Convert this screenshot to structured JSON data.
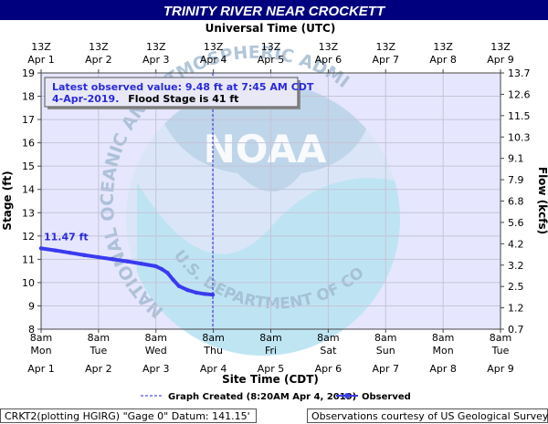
{
  "chart_data": {
    "type": "line",
    "title": "TRINITY RIVER NEAR CROCKETT",
    "top_axis_title": "Universal Time (UTC)",
    "xlabel": "Site Time (CDT)",
    "ylabel": "Stage (ft)",
    "y2label": "Flow (kcfs)",
    "ylim": [
      8,
      19
    ],
    "y_ticks": [
      8,
      9,
      10,
      11,
      12,
      13,
      14,
      15,
      16,
      17,
      18,
      19
    ],
    "y2_ticks": [
      "0.7",
      "1.2",
      "2.5",
      "3.2",
      "4.2",
      "5.6",
      "6.8",
      "7.9",
      "9.1",
      "10.3",
      "11.5",
      "12.6",
      "13.7"
    ],
    "x_ticks_top": [
      [
        "13Z",
        "Apr 1"
      ],
      [
        "13Z",
        "Apr 2"
      ],
      [
        "13Z",
        "Apr 3"
      ],
      [
        "13Z",
        "Apr 4"
      ],
      [
        "13Z",
        "Apr 5"
      ],
      [
        "13Z",
        "Apr 6"
      ],
      [
        "13Z",
        "Apr 7"
      ],
      [
        "13Z",
        "Apr 8"
      ],
      [
        "13Z",
        "Apr 9"
      ]
    ],
    "x_ticks_bottom": [
      [
        "8am",
        "Mon",
        "Apr 1"
      ],
      [
        "8am",
        "Tue",
        "Apr 2"
      ],
      [
        "8am",
        "Wed",
        "Apr 3"
      ],
      [
        "8am",
        "Thu",
        "Apr 4"
      ],
      [
        "8am",
        "Fri",
        "Apr 5"
      ],
      [
        "8am",
        "Sat",
        "Apr 6"
      ],
      [
        "8am",
        "Sun",
        "Apr 7"
      ],
      [
        "8am",
        "Mon",
        "Apr 8"
      ],
      [
        "8am",
        "Tue",
        "Apr 9"
      ]
    ],
    "xlim_days": [
      0,
      8
    ],
    "series": [
      {
        "name": "Observed",
        "color": "#3a3af0",
        "points": [
          [
            0.0,
            11.47
          ],
          [
            0.25,
            11.38
          ],
          [
            0.5,
            11.28
          ],
          [
            0.75,
            11.18
          ],
          [
            1.0,
            11.09
          ],
          [
            1.25,
            11.0
          ],
          [
            1.5,
            10.91
          ],
          [
            1.75,
            10.81
          ],
          [
            2.0,
            10.7
          ],
          [
            2.1,
            10.58
          ],
          [
            2.2,
            10.42
          ],
          [
            2.3,
            10.12
          ],
          [
            2.4,
            9.85
          ],
          [
            2.55,
            9.68
          ],
          [
            2.7,
            9.57
          ],
          [
            2.85,
            9.51
          ],
          [
            2.99,
            9.48
          ]
        ]
      }
    ],
    "first_value_label": "11.47 ft",
    "graph_created_x": 2.99,
    "grid": true,
    "legend_position": "bottom"
  },
  "annotation": {
    "line1": "Latest observed value: 9.48 ft at 7:45 AM CDT",
    "line2_date": "4-Apr-2019.",
    "line2_rest": "Flood Stage is 41 ft"
  },
  "legend": {
    "created": "Graph Created (8:20AM Apr 4, 2019)",
    "observed": "Observed"
  },
  "watermark": {
    "logo_text": "NOAA",
    "ring_text_left": "NATIONAL OCEANIC AND ATMOSPHERIC ADMINISTRATION",
    "ring_text_bottom": "U.S. DEPARTMENT OF COMMERCE"
  },
  "footer": {
    "left": "CRKT2(plotting HGIRG) \"Gage 0\" Datum: 141.15'",
    "right": "Observations courtesy of US Geological Survey"
  },
  "colors": {
    "title_bg": "#00007e",
    "plot_bg": "#e6e6ff",
    "series": "#3a3af0",
    "annotation": "#2a2adc"
  }
}
